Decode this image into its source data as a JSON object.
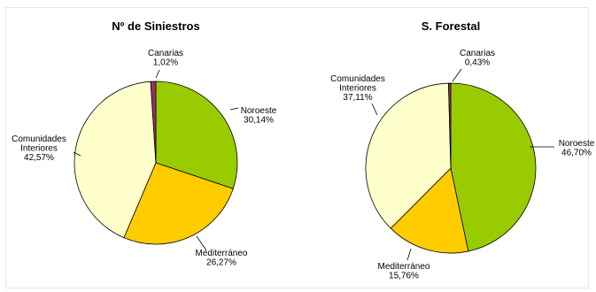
{
  "chart_data": [
    {
      "type": "pie",
      "title": "Nº de Siniestros",
      "slices": [
        {
          "label_lines": [
            "Noroeste",
            "30,14%"
          ],
          "value": 30.14,
          "color": "#99cc00"
        },
        {
          "label_lines": [
            "Mediterráneo",
            "26,27%"
          ],
          "value": 26.27,
          "color": "#ffcc00"
        },
        {
          "label_lines": [
            "Comunidades",
            "Interiores",
            "42,57%"
          ],
          "value": 42.57,
          "color": "#ffffcc"
        },
        {
          "label_lines": [
            "Canarias",
            "1,02%"
          ],
          "value": 1.02,
          "color": "#993366"
        }
      ]
    },
    {
      "type": "pie",
      "title": "S. Forestal",
      "slices": [
        {
          "label_lines": [
            "Noroeste",
            "46,70%"
          ],
          "value": 46.7,
          "color": "#99cc00"
        },
        {
          "label_lines": [
            "Mediterráneo",
            "15,76%"
          ],
          "value": 15.76,
          "color": "#ffcc00"
        },
        {
          "label_lines": [
            "Comunidades",
            "Interiores",
            "37,11%"
          ],
          "value": 37.11,
          "color": "#ffffcc"
        },
        {
          "label_lines": [
            "Canarias",
            "0,43%"
          ],
          "value": 0.43,
          "color": "#993366"
        }
      ]
    }
  ]
}
